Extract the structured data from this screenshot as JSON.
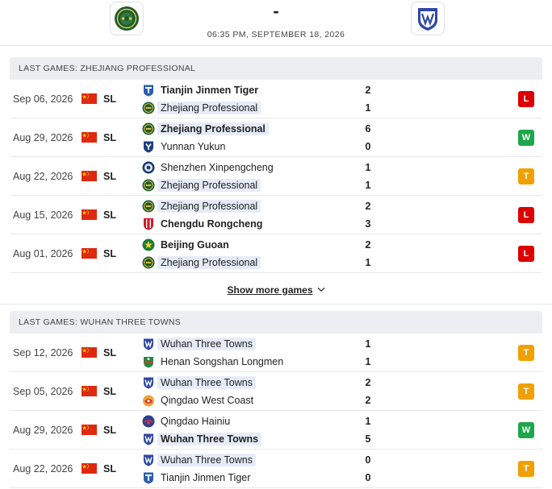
{
  "header": {
    "score_separator": "-",
    "kickoff": "06:35 PM, SEPTEMBER 18, 2026",
    "home_team": "Zhejiang Professional",
    "away_team": "Wuhan Three Towns"
  },
  "colors": {
    "loss": "#dc0000",
    "win": "#1ea64a",
    "draw": "#f0a000",
    "focus_team_highlight": "#e6ecf7",
    "section_header_bg": "#eceef1"
  },
  "sections": [
    {
      "title": "LAST GAMES: ZHEJIANG PROFESSIONAL",
      "matches": [
        {
          "date": "Sep 06, 2026",
          "league": "SL",
          "flag": "china-flag-icon",
          "home": {
            "name": "Tianjin Jinmen Tiger",
            "logo": "tianjin-logo-icon",
            "goals": "2",
            "bold": true,
            "focus": false
          },
          "away": {
            "name": "Zhejiang Professional",
            "logo": "zhejiang-logo-icon",
            "goals": "1",
            "bold": false,
            "focus": true
          },
          "result": "L"
        },
        {
          "date": "Aug 29, 2026",
          "league": "SL",
          "flag": "china-flag-icon",
          "home": {
            "name": "Zhejiang Professional",
            "logo": "zhejiang-logo-icon",
            "goals": "6",
            "bold": true,
            "focus": true
          },
          "away": {
            "name": "Yunnan Yukun",
            "logo": "yunnan-logo-icon",
            "goals": "0",
            "bold": false,
            "focus": false
          },
          "result": "W"
        },
        {
          "date": "Aug 22, 2026",
          "league": "SL",
          "flag": "china-flag-icon",
          "home": {
            "name": "Shenzhen Xinpengcheng",
            "logo": "shenzhen-logo-icon",
            "goals": "1",
            "bold": false,
            "focus": false
          },
          "away": {
            "name": "Zhejiang Professional",
            "logo": "zhejiang-logo-icon",
            "goals": "1",
            "bold": false,
            "focus": true
          },
          "result": "T"
        },
        {
          "date": "Aug 15, 2026",
          "league": "SL",
          "flag": "china-flag-icon",
          "home": {
            "name": "Zhejiang Professional",
            "logo": "zhejiang-logo-icon",
            "goals": "2",
            "bold": false,
            "focus": true
          },
          "away": {
            "name": "Chengdu Rongcheng",
            "logo": "chengdu-logo-icon",
            "goals": "3",
            "bold": true,
            "focus": false
          },
          "result": "L"
        },
        {
          "date": "Aug 01, 2026",
          "league": "SL",
          "flag": "china-flag-icon",
          "home": {
            "name": "Beijing Guoan",
            "logo": "beijing-logo-icon",
            "goals": "2",
            "bold": true,
            "focus": false
          },
          "away": {
            "name": "Zhejiang Professional",
            "logo": "zhejiang-logo-icon",
            "goals": "1",
            "bold": false,
            "focus": true
          },
          "result": "L"
        }
      ]
    },
    {
      "title": "LAST GAMES: WUHAN THREE TOWNS",
      "matches": [
        {
          "date": "Sep 12, 2026",
          "league": "SL",
          "flag": "china-flag-icon",
          "home": {
            "name": "Wuhan Three Towns",
            "logo": "wuhan-logo-icon",
            "goals": "1",
            "bold": false,
            "focus": true
          },
          "away": {
            "name": "Henan Songshan Longmen",
            "logo": "henan-logo-icon",
            "goals": "1",
            "bold": false,
            "focus": false
          },
          "result": "T"
        },
        {
          "date": "Sep 05, 2026",
          "league": "SL",
          "flag": "china-flag-icon",
          "home": {
            "name": "Wuhan Three Towns",
            "logo": "wuhan-logo-icon",
            "goals": "2",
            "bold": false,
            "focus": true
          },
          "away": {
            "name": "Qingdao West Coast",
            "logo": "qingdao-west-coast-logo-icon",
            "goals": "2",
            "bold": false,
            "focus": false
          },
          "result": "T"
        },
        {
          "date": "Aug 29, 2026",
          "league": "SL",
          "flag": "china-flag-icon",
          "home": {
            "name": "Qingdao Hainiu",
            "logo": "qingdao-hainiu-logo-icon",
            "goals": "1",
            "bold": false,
            "focus": false
          },
          "away": {
            "name": "Wuhan Three Towns",
            "logo": "wuhan-logo-icon",
            "goals": "5",
            "bold": true,
            "focus": true
          },
          "result": "W"
        },
        {
          "date": "Aug 22, 2026",
          "league": "SL",
          "flag": "china-flag-icon",
          "home": {
            "name": "Wuhan Three Towns",
            "logo": "wuhan-logo-icon",
            "goals": "0",
            "bold": false,
            "focus": true
          },
          "away": {
            "name": "Tianjin Jinmen Tiger",
            "logo": "tianjin-logo-icon",
            "goals": "0",
            "bold": false,
            "focus": false
          },
          "result": "T"
        }
      ]
    }
  ],
  "show_more_label": "Show more games",
  "show_more_icon": "chevron-down-icon"
}
